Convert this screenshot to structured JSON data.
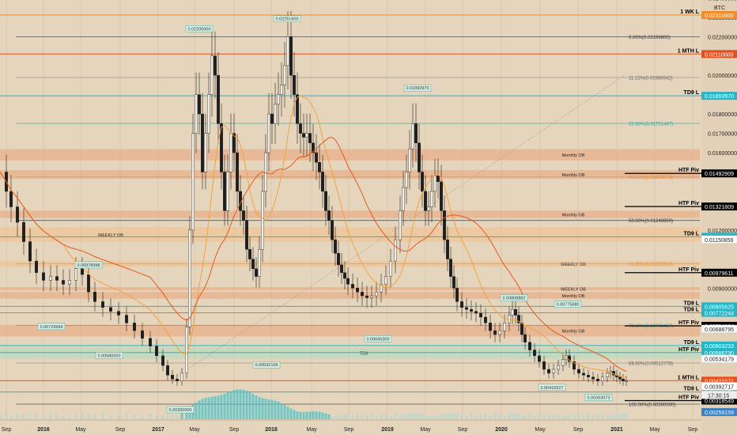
{
  "chart_data": {
    "type": "candlestick",
    "currency_label": "BTC",
    "countdown": "17:30:15",
    "x_tick_labels": [
      "Sep",
      "2016",
      "May",
      "Sep",
      "2017",
      "May",
      "Sep",
      "2018",
      "May",
      "Sep",
      "2019",
      "May",
      "Sep",
      "2020",
      "May",
      "Sep",
      "2021",
      "May",
      "Sep"
    ],
    "y_tick_labels": [
      "0.02400000",
      "0.02300000",
      "0.02200000",
      "0.02000000",
      "0.01800000",
      "0.01700000",
      "0.01600000",
      "0.01200000",
      "0.00900000"
    ],
    "ylim": [
      0.00259159,
      0.023116
    ],
    "price_path": [
      [
        0,
        0.015
      ],
      [
        8,
        0.014
      ],
      [
        14,
        0.0132
      ],
      [
        22,
        0.0124
      ],
      [
        30,
        0.0114
      ],
      [
        38,
        0.0104
      ],
      [
        46,
        0.0098
      ],
      [
        55,
        0.0094
      ],
      [
        64,
        0.0096
      ],
      [
        72,
        0.0094
      ],
      [
        80,
        0.0092
      ],
      [
        88,
        0.0094
      ],
      [
        96,
        0.01
      ],
      [
        104,
        0.0097
      ],
      [
        112,
        0.0088
      ],
      [
        120,
        0.0083
      ],
      [
        130,
        0.008
      ],
      [
        140,
        0.0078
      ],
      [
        150,
        0.0076
      ],
      [
        160,
        0.0072
      ],
      [
        170,
        0.0068
      ],
      [
        180,
        0.0064
      ],
      [
        190,
        0.006
      ],
      [
        198,
        0.0055
      ],
      [
        206,
        0.005
      ],
      [
        212,
        0.0045
      ],
      [
        218,
        0.0043
      ],
      [
        224,
        0.0042
      ],
      [
        230,
        0.0046
      ],
      [
        236,
        0.007
      ],
      [
        240,
        0.012
      ],
      [
        244,
        0.017
      ],
      [
        248,
        0.019
      ],
      [
        252,
        0.018
      ],
      [
        256,
        0.015
      ],
      [
        260,
        0.017
      ],
      [
        264,
        0.019
      ],
      [
        268,
        0.021
      ],
      [
        272,
        0.02
      ],
      [
        276,
        0.0175
      ],
      [
        280,
        0.015
      ],
      [
        284,
        0.013
      ],
      [
        288,
        0.015
      ],
      [
        292,
        0.017
      ],
      [
        296,
        0.016
      ],
      [
        300,
        0.014
      ],
      [
        304,
        0.013
      ],
      [
        308,
        0.0125
      ],
      [
        312,
        0.011
      ],
      [
        316,
        0.0105
      ],
      [
        320,
        0.01
      ],
      [
        324,
        0.0096
      ],
      [
        328,
        0.011
      ],
      [
        332,
        0.014
      ],
      [
        336,
        0.016
      ],
      [
        340,
        0.018
      ],
      [
        344,
        0.0175
      ],
      [
        348,
        0.0185
      ],
      [
        352,
        0.019
      ],
      [
        356,
        0.0195
      ],
      [
        360,
        0.0205
      ],
      [
        364,
        0.022
      ],
      [
        368,
        0.02
      ],
      [
        372,
        0.019
      ],
      [
        376,
        0.0175
      ],
      [
        380,
        0.017
      ],
      [
        384,
        0.0168
      ],
      [
        388,
        0.017
      ],
      [
        392,
        0.0165
      ],
      [
        396,
        0.016
      ],
      [
        400,
        0.0155
      ],
      [
        404,
        0.015
      ],
      [
        408,
        0.014
      ],
      [
        412,
        0.013
      ],
      [
        416,
        0.0125
      ],
      [
        420,
        0.0115
      ],
      [
        424,
        0.0108
      ],
      [
        428,
        0.0102
      ],
      [
        432,
        0.0098
      ],
      [
        436,
        0.0095
      ],
      [
        440,
        0.0092
      ],
      [
        446,
        0.009
      ],
      [
        452,
        0.0088
      ],
      [
        458,
        0.0086
      ],
      [
        464,
        0.0085
      ],
      [
        470,
        0.0086
      ],
      [
        476,
        0.0088
      ],
      [
        482,
        0.0092
      ],
      [
        488,
        0.0096
      ],
      [
        494,
        0.0104
      ],
      [
        500,
        0.0115
      ],
      [
        506,
        0.013
      ],
      [
        510,
        0.0142
      ],
      [
        514,
        0.015
      ],
      [
        518,
        0.0162
      ],
      [
        522,
        0.0175
      ],
      [
        526,
        0.0165
      ],
      [
        530,
        0.015
      ],
      [
        534,
        0.014
      ],
      [
        538,
        0.013
      ],
      [
        542,
        0.0132
      ],
      [
        546,
        0.014
      ],
      [
        550,
        0.0148
      ],
      [
        554,
        0.0145
      ],
      [
        558,
        0.013
      ],
      [
        562,
        0.0115
      ],
      [
        566,
        0.0105
      ],
      [
        570,
        0.0096
      ],
      [
        574,
        0.009
      ],
      [
        578,
        0.0083
      ],
      [
        584,
        0.008
      ],
      [
        590,
        0.0079
      ],
      [
        596,
        0.0078
      ],
      [
        602,
        0.0077
      ],
      [
        608,
        0.0075
      ],
      [
        614,
        0.0072
      ],
      [
        620,
        0.0068
      ],
      [
        626,
        0.0066
      ],
      [
        632,
        0.0068
      ],
      [
        638,
        0.0072
      ],
      [
        644,
        0.0076
      ],
      [
        648,
        0.0079
      ],
      [
        652,
        0.0076
      ],
      [
        656,
        0.0072
      ],
      [
        660,
        0.0066
      ],
      [
        664,
        0.0062
      ],
      [
        670,
        0.0058
      ],
      [
        676,
        0.0055
      ],
      [
        682,
        0.0052
      ],
      [
        688,
        0.0048
      ],
      [
        694,
        0.0046
      ],
      [
        700,
        0.0048
      ],
      [
        706,
        0.005
      ],
      [
        712,
        0.0053
      ],
      [
        716,
        0.0055
      ],
      [
        720,
        0.0052
      ],
      [
        726,
        0.0048
      ],
      [
        732,
        0.0046
      ],
      [
        738,
        0.0045
      ],
      [
        744,
        0.0044
      ],
      [
        750,
        0.0043
      ],
      [
        756,
        0.0042
      ],
      [
        762,
        0.0044
      ],
      [
        768,
        0.0046
      ],
      [
        772,
        0.0047
      ],
      [
        776,
        0.0045
      ],
      [
        780,
        0.0044
      ],
      [
        784,
        0.0043
      ],
      [
        788,
        0.0042
      ],
      [
        792,
        0.0042
      ]
    ],
    "hlines": [
      {
        "label": "1 WK L",
        "value": "0.02311600",
        "color": "#f28c28"
      },
      {
        "label": "1 MTH L",
        "value": "0.02110000",
        "color": "#e6501e"
      },
      {
        "label": "TD9 L",
        "value": "0.01893970",
        "color": "#26b5c4"
      },
      {
        "label": "HTF Piv",
        "value": "0.01492909",
        "color": "#000000"
      },
      {
        "label": "HTF Piv",
        "value": "0.01321809",
        "color": "#000000"
      },
      {
        "label": "TD9 L",
        "value": "0.01165231",
        "color": "#26b5c4"
      },
      {
        "label": "HTF Piv",
        "value": "0.00979611",
        "color": "#000000"
      },
      {
        "label": "TD9 L",
        "value": "0.00805625",
        "color": "#26b5c4"
      },
      {
        "label": "TD9 L",
        "value": "0.00772244",
        "color": "#26b5c4"
      },
      {
        "label": "HTF Piv",
        "value": "0.00704934",
        "color": "#000000"
      },
      {
        "label": "TD9 L",
        "value": "0.00603233",
        "color": "#26b5c4"
      },
      {
        "label": "HTF Piv",
        "value": "0.00566730",
        "color": "#26b5c4"
      },
      {
        "label": "1 MTH L",
        "value": "0.00421571",
        "color": "#e6501e"
      },
      {
        "label": "TD9 L",
        "value": "0.00363073",
        "color": "#26b5c4"
      },
      {
        "label": "HTF Piv",
        "value": "0.00318549",
        "color": "#000000"
      }
    ],
    "fib_levels": [
      {
        "label": "0.00%(0.02199800)",
        "value": 0.021998,
        "color": "#333333"
      },
      {
        "label": "11.12%(0.01988542)",
        "value": 0.01988542,
        "color": "#888888"
      },
      {
        "label": "23.60%(0.01751447)",
        "value": 0.01751447,
        "color": "#26a69a"
      },
      {
        "label": "38.20%(0.01474576)",
        "value": 0.01474576,
        "color": "#f28c28"
      },
      {
        "label": "50.00%(0.01249900)",
        "value": 0.012499,
        "color": "#333333"
      },
      {
        "label": "61.80%(0.01025724)",
        "value": 0.01025724,
        "color": "#f28c28"
      },
      {
        "label": "78.60%(0.00706457)",
        "value": 0.00706457,
        "color": "#26a69a"
      },
      {
        "label": "88.60%(0.00512778)",
        "value": 0.00512778,
        "color": "#888888"
      },
      {
        "label": "100.00%(0.00300000)",
        "value": 0.003,
        "color": "#333333"
      }
    ],
    "zones": [
      {
        "label": "Monthly OB",
        "top": 0.01618,
        "bottom": 0.0156,
        "color": "#e9a278"
      },
      {
        "label": "Monthly OB",
        "top": 0.0151,
        "bottom": 0.01465,
        "color": "#e9a278"
      },
      {
        "label": "Monthly OB",
        "top": 0.013,
        "bottom": 0.01262,
        "color": "#e9a278"
      },
      {
        "label": "WEEKLY OB",
        "top": 0.01215,
        "bottom": 0.0114,
        "color": "#f0c08a"
      },
      {
        "label": "WEEKLY OB",
        "top": 0.0104,
        "bottom": 0.0101,
        "color": "#f0c08a"
      },
      {
        "label": "WEEKLY OB",
        "top": 0.00905,
        "bottom": 0.0089,
        "color": "#e9a278"
      },
      {
        "label": "Monthly OB",
        "top": 0.0088,
        "bottom": 0.00845,
        "color": "#e9a278"
      },
      {
        "label": "Monthly OB",
        "top": 0.0071,
        "bottom": 0.0065,
        "color": "#e9a278"
      },
      {
        "label": "TD9",
        "top": 0.00595,
        "bottom": 0.00535,
        "color": "#a8dcc0"
      }
    ],
    "extra_price_labels": [
      "0.01150856",
      "0.00688795",
      "0.00534179",
      "0.00392717",
      "0.00259159"
    ],
    "swing_labels": [
      {
        "text": "0.02251600",
        "value": 0.022516
      },
      {
        "text": "0.02200000",
        "value": 0.022
      },
      {
        "text": "0.01893970",
        "value": 0.0189397
      },
      {
        "text": "0.00978998",
        "value": 0.00978998
      },
      {
        "text": "0.00808882",
        "value": 0.00808882
      },
      {
        "text": "0.00775680",
        "value": 0.0077568
      },
      {
        "text": "0.00729999",
        "value": 0.00729999
      },
      {
        "text": "0.00666300",
        "value": 0.006663
      },
      {
        "text": "0.00580000",
        "value": 0.0058
      },
      {
        "text": "0.00532106",
        "value": 0.00532106
      },
      {
        "text": "0.00415527",
        "value": 0.00415527
      },
      {
        "text": "0.00363073",
        "value": 0.00363073
      },
      {
        "text": "0.00300000",
        "value": 0.003
      }
    ]
  }
}
